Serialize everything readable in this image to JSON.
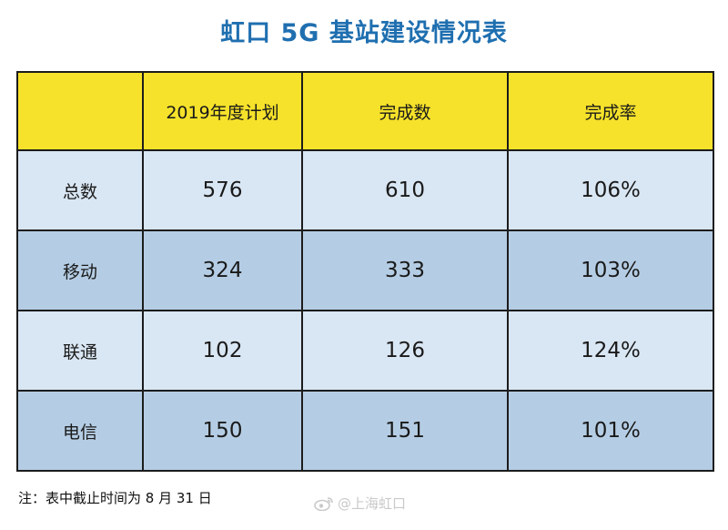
{
  "title": "虹口 5G 基站建设情况表",
  "table": {
    "headers": [
      "",
      "2019年度计划",
      "完成数",
      "完成率"
    ],
    "rows": [
      {
        "name": "总数",
        "plan": "576",
        "done": "610",
        "rate": "106%"
      },
      {
        "name": "移动",
        "plan": "324",
        "done": "333",
        "rate": "103%"
      },
      {
        "name": "联通",
        "plan": "102",
        "done": "126",
        "rate": "124%"
      },
      {
        "name": "电信",
        "plan": "150",
        "done": "151",
        "rate": "101%"
      }
    ]
  },
  "note": "注：表中截止时间为 8 月 31 日",
  "watermark": "@上海虹口",
  "colors": {
    "title": "#1f6fb0",
    "header_bg": "#f6e22a",
    "row_light": "#d9e6f3",
    "row_dark": "#b5cde4"
  },
  "icons": {
    "watermark_logo": "weibo-icon"
  }
}
